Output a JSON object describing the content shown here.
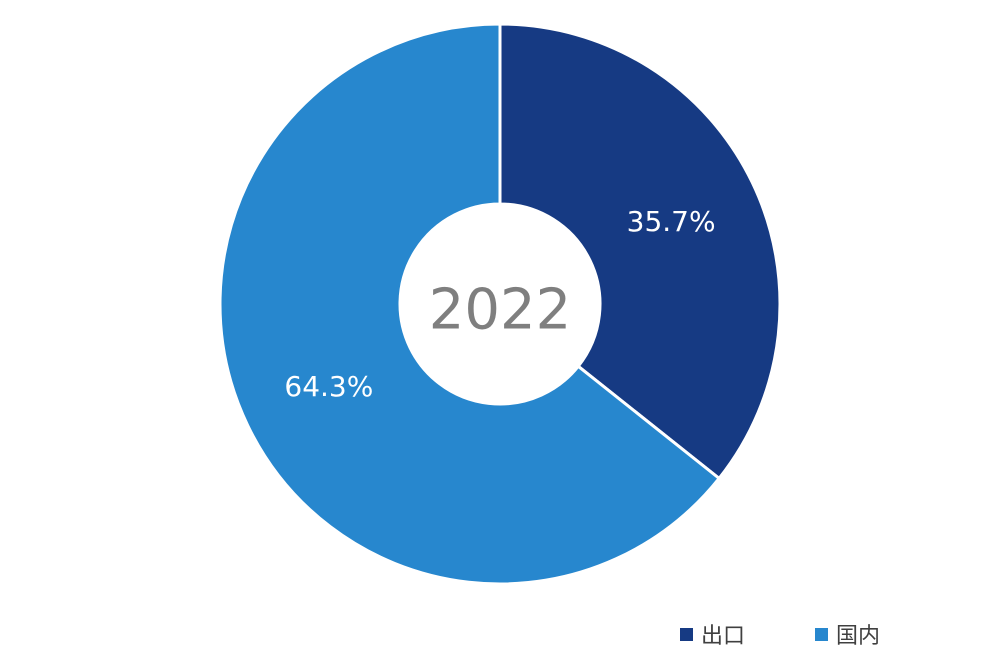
{
  "chart_data": {
    "type": "pie",
    "style": "donut",
    "center_label": "2022",
    "start_angle_deg": 0,
    "direction": "clockwise",
    "slices": [
      {
        "name": "出口",
        "value": 35.7,
        "label": "35.7%",
        "color": "#163a83"
      },
      {
        "name": "国内",
        "value": 64.3,
        "label": "64.3%",
        "color": "#2787ce"
      }
    ],
    "legend_position": "bottom-right"
  }
}
